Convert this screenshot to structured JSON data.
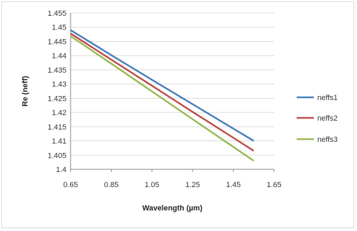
{
  "chart_data": {
    "type": "line",
    "title": "",
    "xlabel": "Wavelength (µm)",
    "ylabel": "Re (neff)",
    "xlim": [
      0.65,
      1.65
    ],
    "ylim": [
      1.4,
      1.455
    ],
    "x_ticks": [
      "0.65",
      "0.85",
      "1.05",
      "1.25",
      "1.45",
      "1.65"
    ],
    "y_ticks": [
      "1.4",
      "1.405",
      "1.41",
      "1.415",
      "1.42",
      "1.425",
      "1.43",
      "1.435",
      "1.44",
      "1.445",
      "1.45",
      "1.455"
    ],
    "grid": "horizontal",
    "legend_position": "right",
    "series": [
      {
        "name": "neffs1",
        "color": "#4a7ebb",
        "x": [
          0.65,
          0.85,
          1.05,
          1.25,
          1.45,
          1.55
        ],
        "y": [
          1.449,
          1.4402,
          1.4315,
          1.4229,
          1.4143,
          1.41
        ]
      },
      {
        "name": "neffs2",
        "color": "#be4b48",
        "x": [
          0.65,
          0.85,
          1.05,
          1.25,
          1.45,
          1.55
        ],
        "y": [
          1.4478,
          1.4386,
          1.4294,
          1.4202,
          1.4111,
          1.4065
        ]
      },
      {
        "name": "neffs3",
        "color": "#98b954",
        "x": [
          0.65,
          0.85,
          1.05,
          1.25,
          1.45,
          1.55
        ],
        "y": [
          1.4469,
          1.4372,
          1.4274,
          1.4176,
          1.4079,
          1.403
        ]
      }
    ]
  }
}
